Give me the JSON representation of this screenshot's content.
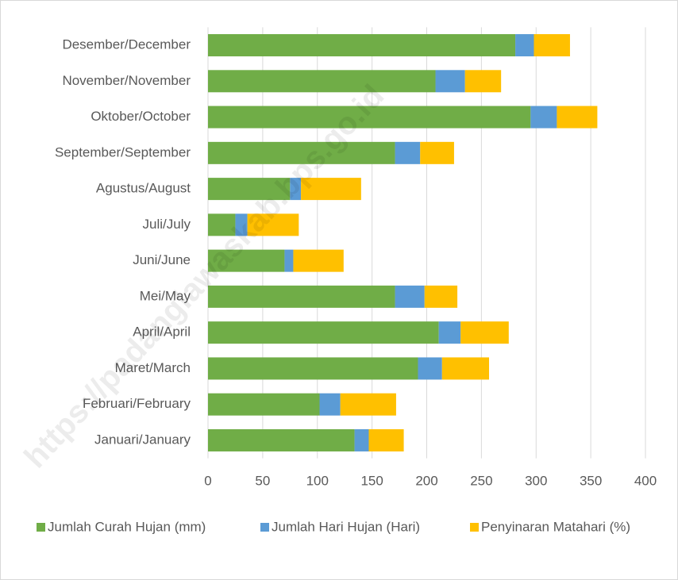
{
  "chart_data": {
    "type": "stacked_barh",
    "watermark": "https://padanglawaskab.bps.go.id",
    "categories": [
      "Januari/January",
      "Februari/February",
      "Maret/March",
      "April/April",
      "Mei/May",
      "Juni/June",
      "Juli/July",
      "Agustus/August",
      "September/September",
      "Oktober/October",
      "November/November",
      "Desember/December"
    ],
    "series": [
      {
        "name": "Jumlah Curah Hujan (mm)",
        "color": "#70ad47",
        "values": [
          134,
          102,
          192,
          211,
          171,
          70,
          25,
          75,
          171,
          295,
          208,
          281
        ]
      },
      {
        "name": "Jumlah Hari Hujan (Hari)",
        "color": "#5b9bd5",
        "values": [
          13,
          19,
          22,
          20,
          27,
          8,
          11,
          10,
          23,
          24,
          27,
          17
        ]
      },
      {
        "name": "Penyinaran Matahari (%)",
        "color": "#ffc000",
        "values": [
          32,
          51,
          43,
          44,
          30,
          46,
          47,
          55,
          31,
          37,
          33,
          33
        ]
      }
    ],
    "xlim": [
      0,
      400
    ],
    "xticks": [
      0,
      50,
      100,
      150,
      200,
      250,
      300,
      350,
      400
    ],
    "grid": true,
    "legend": "bottom"
  }
}
